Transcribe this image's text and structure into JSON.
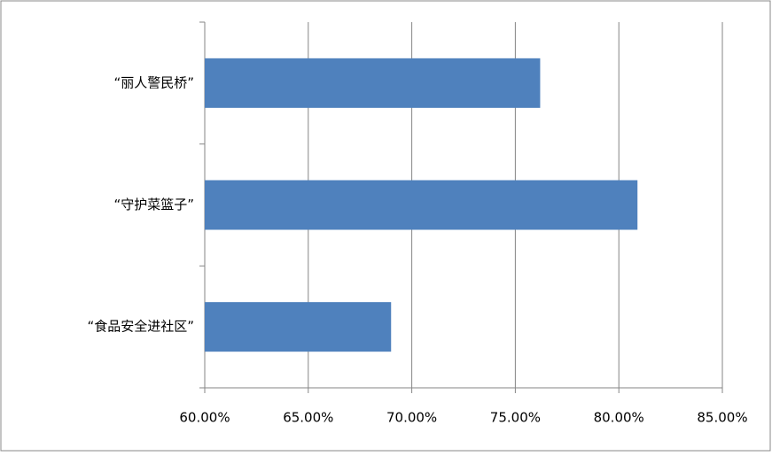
{
  "chart_data": {
    "type": "hbar",
    "categories": [
      "“丽人警民桥”",
      "“守护菜篮子”",
      "“食品安全进社区”"
    ],
    "values": [
      76.2,
      80.9,
      69.0
    ],
    "color": "#4f81bd",
    "xlim": [
      60,
      85
    ],
    "xticks": [
      {
        "value": 60,
        "label": "60.00%"
      },
      {
        "value": 65,
        "label": "65.00%"
      },
      {
        "value": 70,
        "label": "70.00%"
      },
      {
        "value": 75,
        "label": "75.00%"
      },
      {
        "value": 80,
        "label": "80.00%"
      },
      {
        "value": 85,
        "label": "85.00%"
      }
    ],
    "grid": true
  }
}
